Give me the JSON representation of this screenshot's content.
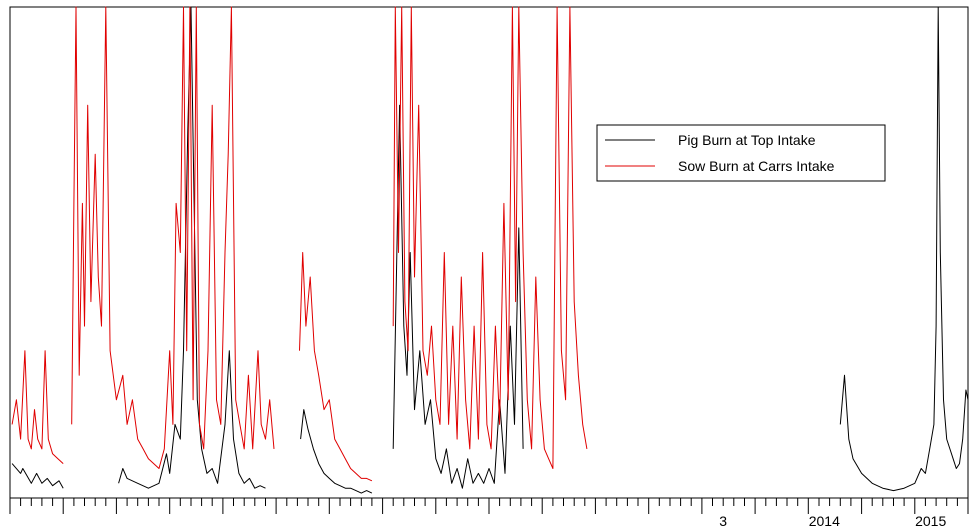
{
  "chart_data": {
    "type": "line",
    "title": "",
    "xlabel": "",
    "ylabel": "",
    "grid": false,
    "legend": {
      "placement": "top-right"
    },
    "x_tick_labels": [
      "3",
      "2014",
      "2015"
    ],
    "series": [
      {
        "name": "Pig Burn at Top Intake",
        "color": "#000000",
        "segments": [
          [
            [
              0.2,
              0.07
            ],
            [
              1.0,
              0.05
            ],
            [
              1.2,
              0.06
            ],
            [
              2.0,
              0.03
            ],
            [
              2.5,
              0.05
            ],
            [
              3.0,
              0.03
            ],
            [
              3.5,
              0.04
            ],
            [
              4.0,
              0.025
            ],
            [
              4.6,
              0.035
            ],
            [
              5.0,
              0.02
            ]
          ],
          [
            [
              10.2,
              0.03
            ],
            [
              10.6,
              0.06
            ],
            [
              11.0,
              0.04
            ],
            [
              12.0,
              0.03
            ],
            [
              13.0,
              0.02
            ],
            [
              14.0,
              0.03
            ],
            [
              14.7,
              0.09
            ],
            [
              15.0,
              0.05
            ],
            [
              15.5,
              0.15
            ],
            [
              16.0,
              0.12
            ],
            [
              16.3,
              0.3
            ],
            [
              16.7,
              0.75
            ],
            [
              17.0,
              1.0
            ],
            [
              17.3,
              0.6
            ],
            [
              17.6,
              0.2
            ],
            [
              18.0,
              0.1
            ],
            [
              18.5,
              0.05
            ],
            [
              19.0,
              0.06
            ],
            [
              19.5,
              0.03
            ],
            [
              20.2,
              0.15
            ],
            [
              20.6,
              0.3
            ],
            [
              21.0,
              0.12
            ],
            [
              21.5,
              0.05
            ],
            [
              22.0,
              0.03
            ],
            [
              22.5,
              0.04
            ],
            [
              23.0,
              0.02
            ],
            [
              23.5,
              0.025
            ],
            [
              24.0,
              0.02
            ]
          ],
          [
            [
              27.3,
              0.12
            ],
            [
              27.6,
              0.18
            ],
            [
              28.0,
              0.14
            ],
            [
              28.5,
              0.1
            ],
            [
              29.0,
              0.07
            ],
            [
              29.5,
              0.05
            ],
            [
              30.0,
              0.04
            ],
            [
              30.5,
              0.03
            ],
            [
              31.0,
              0.025
            ],
            [
              31.5,
              0.02
            ],
            [
              32.0,
              0.02
            ],
            [
              32.5,
              0.015
            ],
            [
              33.0,
              0.01
            ],
            [
              33.5,
              0.015
            ],
            [
              34.0,
              0.01
            ]
          ],
          [
            [
              36.0,
              0.1
            ],
            [
              36.3,
              0.45
            ],
            [
              36.6,
              0.8
            ],
            [
              37.0,
              0.35
            ],
            [
              37.3,
              0.25
            ],
            [
              37.6,
              0.5
            ],
            [
              38.0,
              0.18
            ],
            [
              38.5,
              0.3
            ],
            [
              39.0,
              0.15
            ],
            [
              39.5,
              0.2
            ],
            [
              40.0,
              0.08
            ],
            [
              40.5,
              0.05
            ],
            [
              41.0,
              0.1
            ],
            [
              41.5,
              0.03
            ],
            [
              42.0,
              0.06
            ],
            [
              42.5,
              0.02
            ],
            [
              43.0,
              0.08
            ],
            [
              43.5,
              0.03
            ],
            [
              44.0,
              0.05
            ],
            [
              44.5,
              0.03
            ],
            [
              45.0,
              0.06
            ],
            [
              45.5,
              0.03
            ],
            [
              46.0,
              0.2
            ],
            [
              46.5,
              0.05
            ],
            [
              47.0,
              0.35
            ],
            [
              47.4,
              0.15
            ],
            [
              47.8,
              0.55
            ],
            [
              48.2,
              0.1
            ]
          ],
          [
            [
              78.0,
              0.15
            ],
            [
              78.4,
              0.25
            ],
            [
              78.8,
              0.12
            ],
            [
              79.2,
              0.08
            ],
            [
              80.0,
              0.05
            ],
            [
              81.0,
              0.03
            ],
            [
              82.0,
              0.02
            ],
            [
              83.0,
              0.015
            ],
            [
              84.0,
              0.02
            ],
            [
              85.0,
              0.03
            ],
            [
              85.6,
              0.06
            ],
            [
              86.0,
              0.05
            ],
            [
              86.4,
              0.1
            ],
            [
              86.8,
              0.15
            ],
            [
              87.0,
              0.35
            ],
            [
              87.2,
              1.0
            ],
            [
              87.4,
              0.5
            ],
            [
              87.7,
              0.2
            ],
            [
              88.0,
              0.12
            ],
            [
              88.3,
              0.1
            ],
            [
              88.6,
              0.08
            ],
            [
              88.9,
              0.06
            ],
            [
              89.2,
              0.07
            ],
            [
              89.5,
              0.12
            ],
            [
              89.8,
              0.22
            ],
            [
              90.0,
              0.2
            ]
          ]
        ]
      },
      {
        "name": "Sow Burn at Carrs Intake",
        "color": "#e00000",
        "segments": [
          [
            [
              0.2,
              0.15
            ],
            [
              0.6,
              0.2
            ],
            [
              1.0,
              0.12
            ],
            [
              1.4,
              0.3
            ],
            [
              1.7,
              0.12
            ],
            [
              2.0,
              0.1
            ],
            [
              2.3,
              0.18
            ],
            [
              2.6,
              0.12
            ],
            [
              3.0,
              0.1
            ],
            [
              3.3,
              0.3
            ],
            [
              3.6,
              0.12
            ],
            [
              4.0,
              0.09
            ],
            [
              4.5,
              0.08
            ],
            [
              5.0,
              0.07
            ]
          ],
          [
            [
              5.8,
              0.15
            ],
            [
              6.0,
              0.6
            ],
            [
              6.2,
              1.0
            ],
            [
              6.5,
              0.25
            ],
            [
              6.8,
              0.6
            ],
            [
              7.0,
              0.35
            ],
            [
              7.3,
              0.8
            ],
            [
              7.6,
              0.4
            ],
            [
              8.0,
              0.7
            ],
            [
              8.3,
              0.45
            ],
            [
              8.6,
              0.35
            ],
            [
              9.0,
              1.0
            ],
            [
              9.4,
              0.3
            ],
            [
              10.0,
              0.2
            ],
            [
              10.6,
              0.25
            ],
            [
              11.0,
              0.15
            ],
            [
              11.5,
              0.2
            ],
            [
              12.0,
              0.12
            ],
            [
              12.5,
              0.1
            ],
            [
              13.0,
              0.08
            ],
            [
              13.5,
              0.07
            ],
            [
              14.0,
              0.06
            ],
            [
              14.5,
              0.1
            ],
            [
              15.0,
              0.3
            ],
            [
              15.3,
              0.15
            ],
            [
              15.6,
              0.6
            ],
            [
              16.0,
              0.5
            ],
            [
              16.3,
              1.0
            ],
            [
              16.6,
              0.3
            ],
            [
              16.9,
              1.0
            ],
            [
              17.2,
              0.2
            ],
            [
              17.5,
              1.0
            ],
            [
              17.8,
              0.15
            ],
            [
              18.2,
              0.1
            ],
            [
              18.6,
              0.3
            ],
            [
              19.0,
              0.8
            ],
            [
              19.4,
              0.2
            ],
            [
              19.8,
              0.15
            ],
            [
              20.2,
              0.5
            ],
            [
              20.5,
              0.7
            ],
            [
              20.8,
              1.0
            ],
            [
              21.2,
              0.2
            ],
            [
              21.6,
              0.15
            ],
            [
              22.0,
              0.1
            ],
            [
              22.4,
              0.25
            ],
            [
              22.8,
              0.1
            ],
            [
              23.3,
              0.3
            ],
            [
              23.6,
              0.15
            ],
            [
              24.0,
              0.12
            ],
            [
              24.4,
              0.2
            ],
            [
              24.8,
              0.1
            ]
          ],
          [
            [
              27.2,
              0.3
            ],
            [
              27.5,
              0.5
            ],
            [
              27.8,
              0.35
            ],
            [
              28.2,
              0.45
            ],
            [
              28.6,
              0.3
            ],
            [
              29.0,
              0.25
            ],
            [
              29.5,
              0.18
            ],
            [
              30.0,
              0.2
            ],
            [
              30.5,
              0.12
            ],
            [
              31.0,
              0.1
            ],
            [
              31.5,
              0.08
            ],
            [
              32.0,
              0.06
            ],
            [
              32.5,
              0.05
            ],
            [
              33.0,
              0.04
            ],
            [
              33.5,
              0.04
            ],
            [
              34.0,
              0.035
            ]
          ],
          [
            [
              36.0,
              0.35
            ],
            [
              36.2,
              1.0
            ],
            [
              36.5,
              0.5
            ],
            [
              36.8,
              1.0
            ],
            [
              37.1,
              0.4
            ],
            [
              37.4,
              0.3
            ],
            [
              37.7,
              1.0
            ],
            [
              38.0,
              0.45
            ],
            [
              38.4,
              0.8
            ],
            [
              38.8,
              0.3
            ],
            [
              39.2,
              0.25
            ],
            [
              39.6,
              0.35
            ],
            [
              40.0,
              0.2
            ],
            [
              40.4,
              0.15
            ],
            [
              40.8,
              0.5
            ],
            [
              41.2,
              0.15
            ],
            [
              41.6,
              0.35
            ],
            [
              42.0,
              0.12
            ],
            [
              42.4,
              0.45
            ],
            [
              42.8,
              0.2
            ],
            [
              43.2,
              0.1
            ],
            [
              43.6,
              0.35
            ],
            [
              44.0,
              0.12
            ],
            [
              44.4,
              0.5
            ],
            [
              44.8,
              0.15
            ],
            [
              45.2,
              0.1
            ],
            [
              45.6,
              0.35
            ],
            [
              46.0,
              0.15
            ],
            [
              46.4,
              0.6
            ],
            [
              46.8,
              0.2
            ],
            [
              47.2,
              1.0
            ],
            [
              47.5,
              0.4
            ],
            [
              47.8,
              1.0
            ],
            [
              48.2,
              0.5
            ],
            [
              48.6,
              0.2
            ],
            [
              49.0,
              0.1
            ],
            [
              49.4,
              0.45
            ],
            [
              49.8,
              0.2
            ],
            [
              50.2,
              0.1
            ],
            [
              50.6,
              0.08
            ],
            [
              51.0,
              0.06
            ],
            [
              51.4,
              1.0
            ],
            [
              51.8,
              0.3
            ],
            [
              52.2,
              0.2
            ],
            [
              52.6,
              1.0
            ],
            [
              53.0,
              0.4
            ],
            [
              53.4,
              0.25
            ],
            [
              53.8,
              0.15
            ],
            [
              54.2,
              0.1
            ]
          ]
        ]
      }
    ],
    "x_range": [
      0,
      90
    ],
    "y_range": [
      0,
      1
    ]
  },
  "ticks": {
    "labeled": [
      {
        "label": "3",
        "x": 67.0
      },
      {
        "label": "2014",
        "x": 76.5
      },
      {
        "label": "2015",
        "x": 86.5
      }
    ]
  }
}
